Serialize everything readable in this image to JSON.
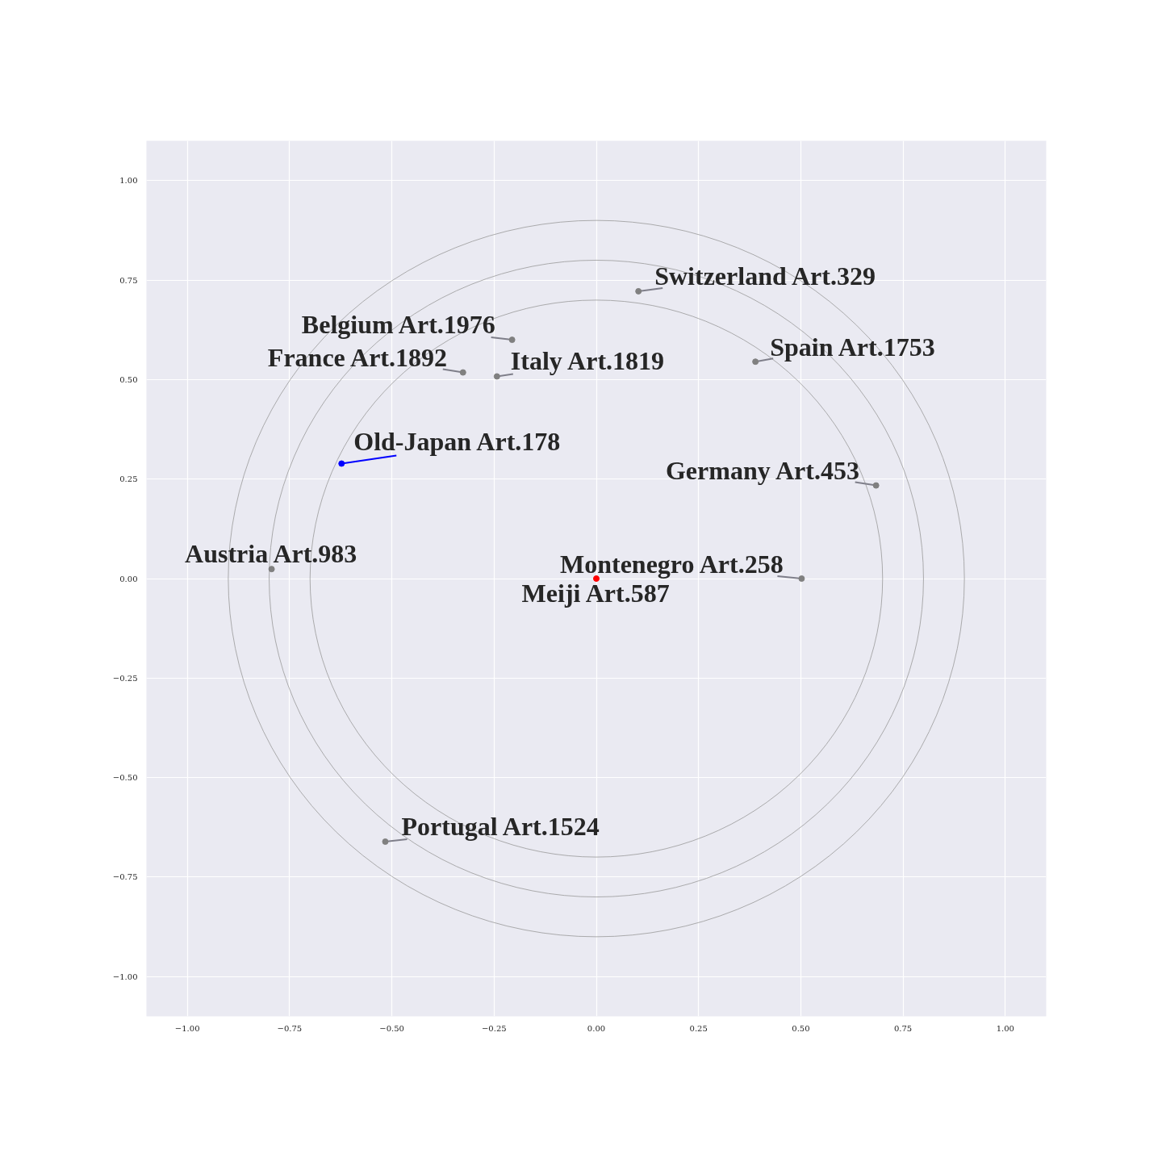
{
  "chart_data": {
    "type": "scatter",
    "xlim": [
      -1.1,
      1.1
    ],
    "ylim": [
      -1.1,
      1.1
    ],
    "xticks": [
      {
        "value": -1,
        "label": "−1.00"
      },
      {
        "value": -0.75,
        "label": "−0.75"
      },
      {
        "value": -0.5,
        "label": "−0.50"
      },
      {
        "value": -0.25,
        "label": "−0.25"
      },
      {
        "value": 0,
        "label": "0.00"
      },
      0.25,
      {
        "value": 0.5,
        "label": "0.50"
      },
      0.75,
      {
        "value": 1,
        "label": "1.00"
      }
    ],
    "yticks": [
      {
        "value": -1,
        "label": "−1.00"
      },
      {
        "value": -0.75,
        "label": "−0.75"
      },
      {
        "value": -0.5,
        "label": "−0.50"
      },
      {
        "value": -0.25,
        "label": "−0.25"
      },
      {
        "value": 0,
        "label": "0.00"
      },
      0.25,
      {
        "value": 0.5,
        "label": "0.50"
      },
      0.75,
      {
        "value": 1,
        "label": "1.00"
      }
    ],
    "grid": true,
    "marker": "circle",
    "series": [
      {
        "color": "#808080",
        "x": [
          0.103,
          -0.206,
          -0.326,
          -0.243,
          0.389,
          0.684,
          -0.794,
          0.502,
          -0.516
        ],
        "values": [
          0.722,
          0.6,
          0.518,
          0.508,
          0.545,
          0.234,
          0.024,
          0.0,
          -0.661
        ],
        "value_labels": [
          "Switzerland Art.329",
          "Belgium Art.1976",
          "France Art.1892",
          "Italy Art.1819",
          "Spain Art.1753",
          "Germany Art.453",
          "Austria Art.983",
          "Montenegro Art.258",
          "Portugal Art.1524"
        ]
      },
      {
        "color": "#0000ff",
        "x": [
          -0.623
        ],
        "values": [
          0.289
        ],
        "value_labels": [
          "Old-Japan Art.178"
        ]
      },
      {
        "color": "#ff0000",
        "x": [
          0.0
        ],
        "values": [
          0.0
        ],
        "value_labels": [
          "Meiji Art.587"
        ]
      }
    ]
  }
}
